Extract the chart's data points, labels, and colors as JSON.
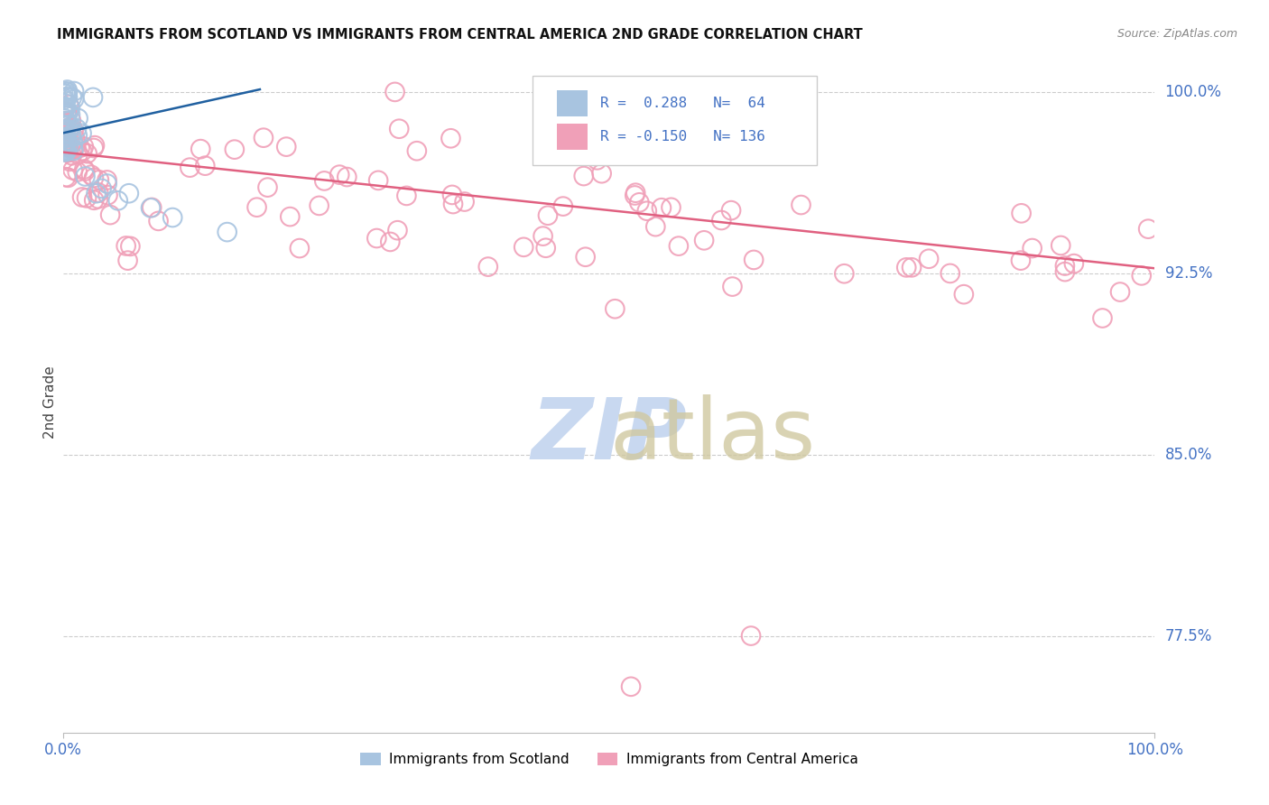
{
  "title": "IMMIGRANTS FROM SCOTLAND VS IMMIGRANTS FROM CENTRAL AMERICA 2ND GRADE CORRELATION CHART",
  "source": "Source: ZipAtlas.com",
  "ylabel": "2nd Grade",
  "legend_label1": "Immigrants from Scotland",
  "legend_label2": "Immigrants from Central America",
  "R1": 0.288,
  "N1": 64,
  "R2": -0.15,
  "N2": 136,
  "color_blue": "#a8c4e0",
  "color_pink": "#f0a0b8",
  "color_blue_line": "#2060a0",
  "color_pink_line": "#e06080",
  "color_axis_text": "#4472c4",
  "watermark_zip_color": "#c8d8f0",
  "watermark_atlas_color": "#d0c8a0",
  "background_color": "#ffffff",
  "xlim": [
    0.0,
    1.0
  ],
  "ylim": [
    0.735,
    1.008
  ],
  "ytick_values": [
    0.775,
    0.85,
    0.925,
    1.0
  ],
  "ytick_labels": [
    "77.5%",
    "85.0%",
    "92.5%",
    "100.0%"
  ],
  "xtick_values": [
    0.0,
    1.0
  ],
  "xtick_labels": [
    "0.0%",
    "100.0%"
  ],
  "blue_line_x": [
    0.0,
    0.18
  ],
  "blue_line_y": [
    0.983,
    1.001
  ],
  "pink_line_x": [
    0.0,
    1.0
  ],
  "pink_line_y": [
    0.975,
    0.927
  ]
}
